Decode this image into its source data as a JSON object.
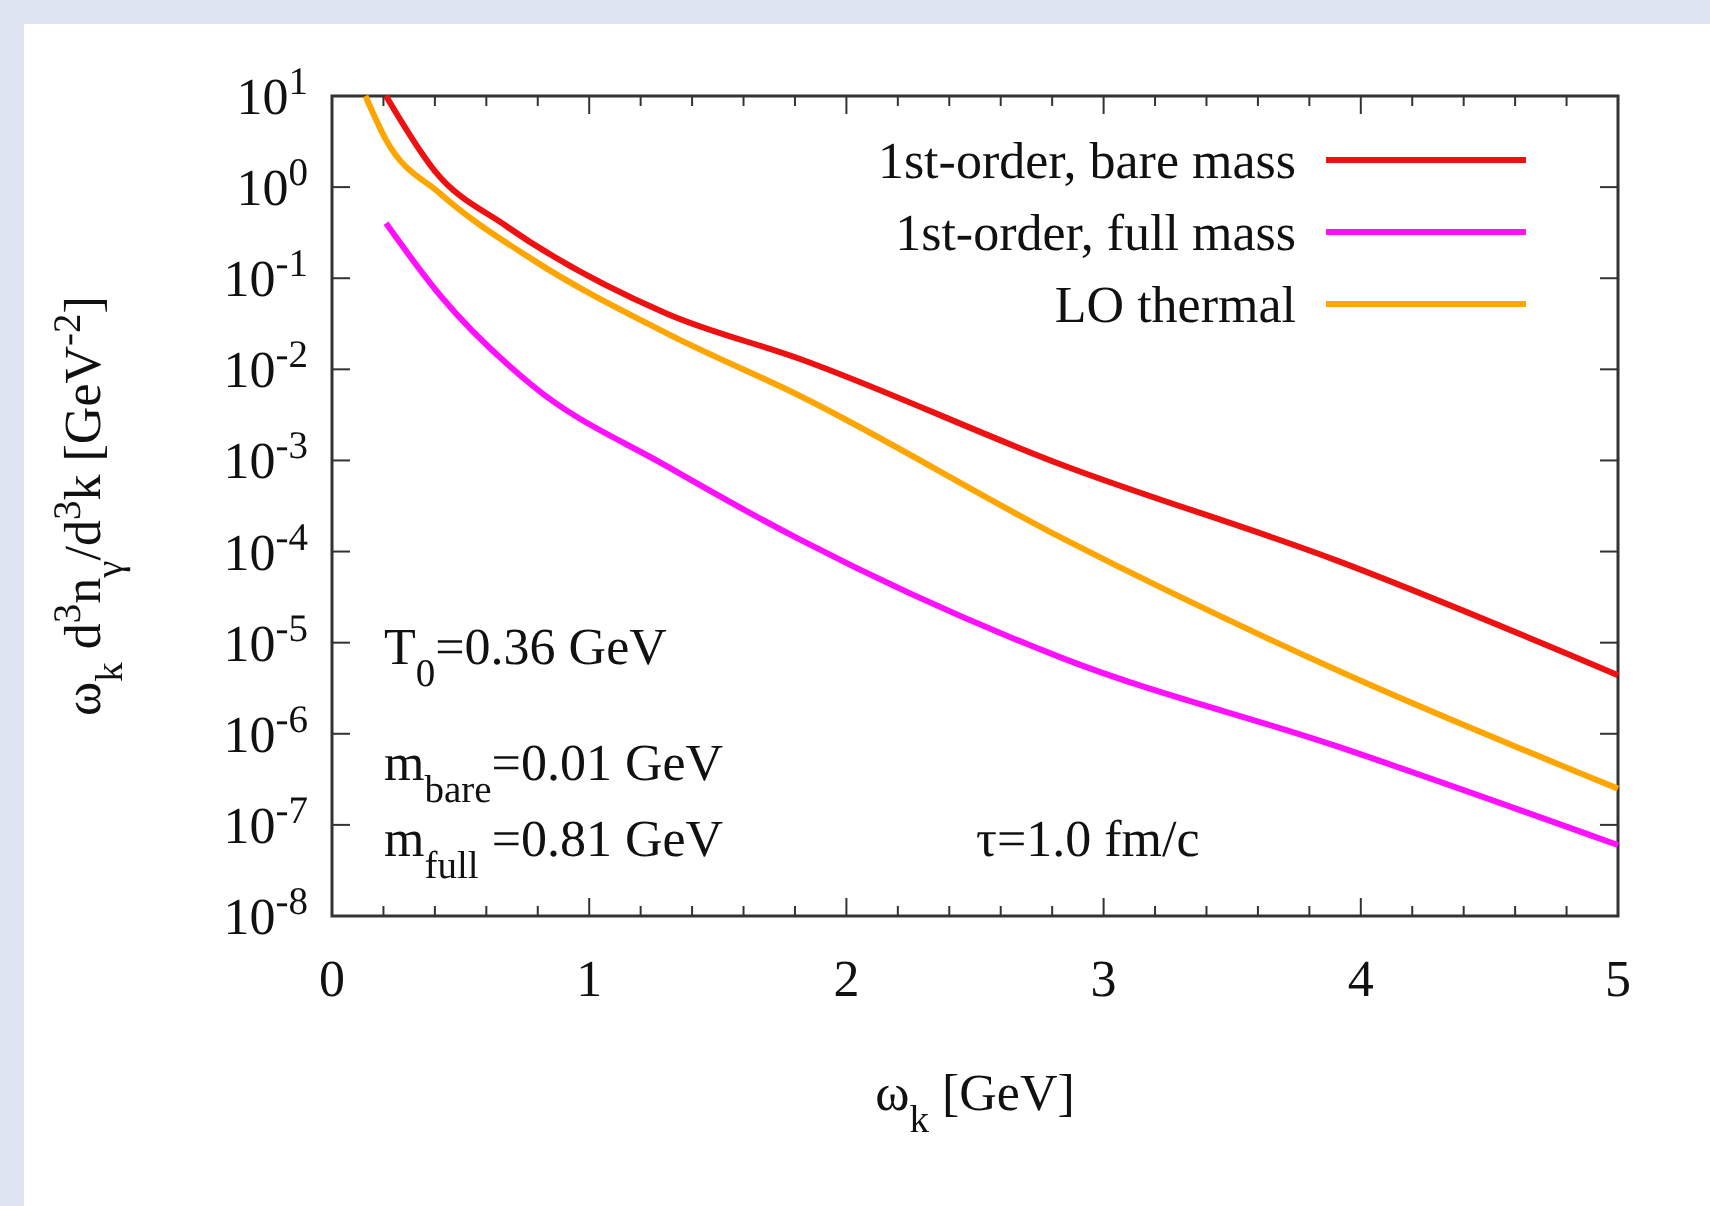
{
  "chart_data": {
    "type": "line",
    "xlabel": "ω$_{k}$ [GeV]",
    "ylabel": "ω$_{k}$ d$^{3}$n$_{γ}$/d$^{3}$k [GeV$^{-2}$]",
    "log": "y",
    "legend": "top right",
    "line_style": "solid",
    "marker": "none",
    "xlim": [
      0,
      5
    ],
    "ylim": [
      1e-08,
      10
    ],
    "xticks": [
      0,
      {
        "value": 0.2,
        "label": null
      },
      {
        "value": 0.4,
        "label": null
      },
      {
        "value": 0.6,
        "label": null
      },
      {
        "value": 0.8,
        "label": null
      },
      1,
      {
        "value": 1.2,
        "label": null
      },
      {
        "value": 1.4,
        "label": null
      },
      {
        "value": 1.6,
        "label": null
      },
      {
        "value": 1.8,
        "label": null
      },
      2,
      {
        "value": 2.2,
        "label": null
      },
      {
        "value": 2.4,
        "label": null
      },
      {
        "value": 2.6,
        "label": null
      },
      {
        "value": 2.8,
        "label": null
      },
      3,
      {
        "value": 3.2,
        "label": null
      },
      {
        "value": 3.4,
        "label": null
      },
      {
        "value": 3.6,
        "label": null
      },
      {
        "value": 3.8,
        "label": null
      },
      4,
      {
        "value": 4.2,
        "label": null
      },
      {
        "value": 4.4,
        "label": null
      },
      {
        "value": 4.6,
        "label": null
      },
      {
        "value": 4.8,
        "label": null
      },
      5
    ],
    "yticks": [
      {
        "value": 1e-08,
        "label": "10$^{-8}$"
      },
      {
        "value": 1e-07,
        "label": "10$^{-7}$"
      },
      {
        "value": 1e-06,
        "label": "10$^{-6}$"
      },
      {
        "value": 1e-05,
        "label": "10$^{-5}$"
      },
      {
        "value": 0.0001,
        "label": "10$^{-4}$"
      },
      {
        "value": 0.001,
        "label": "10$^{-3}$"
      },
      {
        "value": 0.01,
        "label": "10$^{-2}$"
      },
      {
        "value": 0.1,
        "label": "10$^{-1}$"
      },
      {
        "value": 1,
        "label": "10$^{0}$"
      },
      {
        "value": 10,
        "label": "10$^{1}$"
      }
    ],
    "series": [
      {
        "name": "1st-order, bare mass",
        "color": "#ee1111",
        "x": [
          0.21,
          0.4,
          0.68,
          1.3,
          1.82,
          2.85,
          3.9,
          5
        ],
        "values": [
          10,
          1.5,
          0.37,
          0.041,
          0.013,
          0.00087,
          8.1e-05,
          4.4e-06
        ]
      },
      {
        "name": "1st-order, full  mass",
        "color": "#ff11ff",
        "x": [
          0.21,
          0.42,
          0.78,
          1.3,
          1.82,
          2.85,
          3.9,
          5
        ],
        "values": [
          0.4,
          0.065,
          0.0066,
          0.00087,
          0.000135,
          6.6e-06,
          7.4e-07,
          6e-08
        ]
      },
      {
        "name": "LO thermal",
        "color": "#ffa500",
        "x": [
          0.13,
          0.21,
          0.42,
          0.78,
          1.3,
          1.82,
          2.85,
          3.9,
          5
        ],
        "values": [
          10,
          3.3,
          0.85,
          0.16,
          0.025,
          0.0051,
          0.000135,
          5.1e-06,
          2.5e-07
        ]
      }
    ],
    "annotations": [
      "T$_{0}$=0.36 GeV",
      "m$_{bare}$=0.01 GeV",
      "m$_{full}$ =0.81 GeV",
      "τ=1.0 fm/c"
    ]
  }
}
